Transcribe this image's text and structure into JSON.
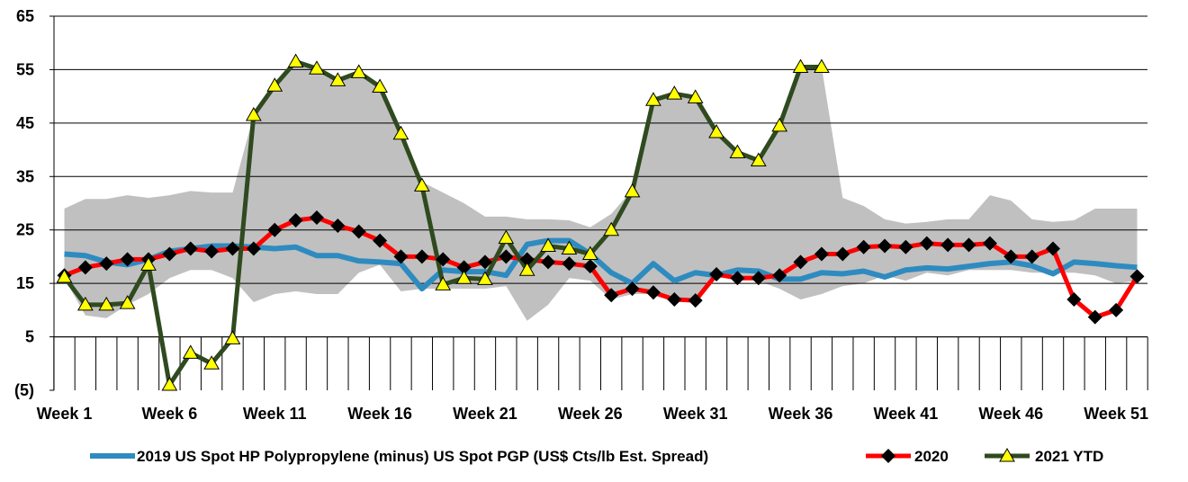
{
  "chart_data": {
    "type": "line",
    "title": "",
    "xlabel": "",
    "ylabel": "",
    "ylim": [
      -5,
      65
    ],
    "y_ticks": [
      {
        "value": -5,
        "label": "(5)"
      },
      {
        "value": 5,
        "label": "5"
      },
      {
        "value": 15,
        "label": "15"
      },
      {
        "value": 25,
        "label": "25"
      },
      {
        "value": 35,
        "label": "35"
      },
      {
        "value": 45,
        "label": "45"
      },
      {
        "value": 55,
        "label": "55"
      },
      {
        "value": 65,
        "label": "65"
      }
    ],
    "x_ticks": [
      {
        "week": 1,
        "label": "Week 1"
      },
      {
        "week": 6,
        "label": "Week 6"
      },
      {
        "week": 11,
        "label": "Week 11"
      },
      {
        "week": 16,
        "label": "Week 16"
      },
      {
        "week": 21,
        "label": "Week 21"
      },
      {
        "week": 26,
        "label": "Week 26"
      },
      {
        "week": 31,
        "label": "Week 31"
      },
      {
        "week": 36,
        "label": "Week 36"
      },
      {
        "week": 41,
        "label": "Week 41"
      },
      {
        "week": 46,
        "label": "Week 46"
      },
      {
        "week": 51,
        "label": "Week 51"
      }
    ],
    "grid": "horizontal",
    "legend_position": "bottom",
    "range_band": {
      "color": "#c0c0c0",
      "upper": [
        29,
        30.8,
        30.8,
        31.5,
        31,
        31.5,
        32.3,
        32,
        32,
        46.5,
        52.5,
        56.5,
        55.5,
        53.5,
        54.5,
        52,
        43,
        34,
        32,
        30,
        27.5,
        27.5,
        27,
        27,
        26.8,
        25.5,
        28,
        32.5,
        49,
        50.5,
        50,
        43.5,
        40,
        38.5,
        44.5,
        55.5,
        55.5,
        31,
        29.5,
        27,
        26.2,
        26.5,
        27,
        27,
        31.5,
        30.5,
        27,
        26.5,
        26.8,
        29,
        29,
        29
      ],
      "lower": [
        16,
        9,
        8.5,
        11,
        13,
        16,
        17.5,
        17.5,
        16,
        11.5,
        13,
        13.5,
        13,
        13,
        17,
        18.5,
        13.5,
        14,
        14,
        14,
        14,
        14.5,
        8,
        11,
        16,
        15.5,
        12,
        13,
        13,
        12,
        12,
        16,
        16,
        15.5,
        14,
        12,
        13,
        14.5,
        15,
        16.5,
        15.5,
        17,
        16.5,
        17.5,
        17.5,
        17.5,
        17,
        17,
        17,
        16.5,
        15,
        15.5
      ]
    },
    "series": [
      {
        "name": "2019 US Spot HP Polypropylene (minus) US Spot PGP (US$ Cts/lb Est. Spread)",
        "color": "#2e8bc0",
        "marker": "none",
        "values": [
          20.5,
          20.2,
          19,
          18.5,
          19.5,
          21,
          21.5,
          22,
          22,
          21.8,
          21.5,
          21.8,
          20.2,
          20.2,
          19.2,
          19,
          18.7,
          14,
          17.5,
          17.2,
          17.2,
          16.5,
          22.3,
          23,
          23,
          20.5,
          17,
          15,
          18.7,
          15.5,
          17,
          16.5,
          17.5,
          17.3,
          15.8,
          15.8,
          17,
          16.8,
          17.3,
          16.2,
          17.5,
          17.9,
          17.7,
          18.2,
          18.7,
          19,
          18.3,
          16.8,
          19,
          18.7,
          18.3,
          18
        ]
      },
      {
        "name": "2020",
        "color": "#ff0000",
        "marker": "diamond",
        "values": [
          16.5,
          18,
          18.7,
          19.5,
          19.5,
          20.5,
          21.5,
          21,
          21.5,
          21.5,
          25,
          26.8,
          27.3,
          25.8,
          24.7,
          23,
          20,
          20,
          19.5,
          18,
          19,
          20,
          19.5,
          19,
          18.7,
          18.2,
          12.8,
          14,
          13.3,
          12,
          11.8,
          16.7,
          16,
          16,
          16.5,
          19,
          20.5,
          20.5,
          21.8,
          22,
          21.8,
          22.5,
          22.2,
          22.2,
          22.5,
          20,
          20,
          21.5,
          12,
          8.7,
          10,
          16.3
        ]
      },
      {
        "name": "2021 YTD",
        "color": "#2f4a1f",
        "marker": "triangle",
        "values": [
          16.2,
          11,
          11,
          11.3,
          18.5,
          -4,
          2,
          0,
          4.7,
          46.5,
          52,
          56.5,
          55.2,
          53,
          54.5,
          51.8,
          43,
          33.3,
          14.8,
          16,
          15.8,
          23.5,
          17.5,
          22,
          21.5,
          20.5,
          25,
          32.2,
          49.3,
          50.5,
          49.8,
          43.3,
          39.5,
          38,
          44.5,
          55.5,
          55.5
        ]
      }
    ]
  }
}
